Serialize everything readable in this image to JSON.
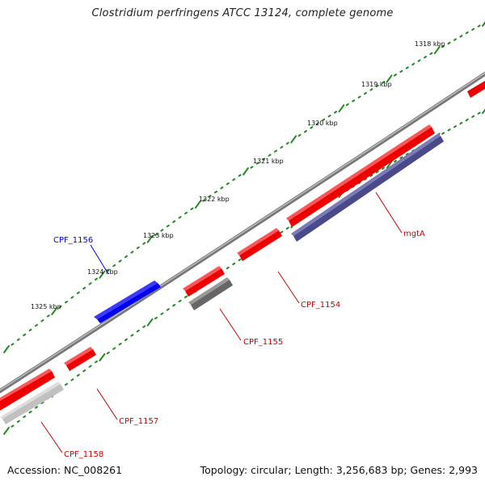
{
  "title": "Clostridium perfringens ATCC 13124, complete genome",
  "footer": {
    "accession": "Accession: NC_008261",
    "topology": "Topology: circular; Length: 3,256,683 bp; Genes: 2,993"
  },
  "ruler": {
    "labels": [
      "1318 kbp",
      "1319 kbp",
      "1320 kbp",
      "1321 kbp",
      "1322 kbp",
      "1323 kbp",
      "1324 kbp",
      "1325 kbp"
    ]
  },
  "genes": [
    {
      "name": "CPF_1156",
      "color": "#0000ee",
      "strand": "forward"
    },
    {
      "name": "mgtA",
      "color": "#cc0000",
      "strand": "reverse"
    },
    {
      "name": "CPF_1154",
      "color": "#cc0000",
      "strand": "reverse"
    },
    {
      "name": "CPF_1155",
      "color": "#cc0000",
      "strand": "reverse"
    },
    {
      "name": "CPF_1157",
      "color": "#cc0000",
      "strand": "reverse"
    },
    {
      "name": "CPF_1158",
      "color": "#cc0000",
      "strand": "reverse"
    }
  ],
  "colors": {
    "backbone": "#888888",
    "tick": "#228822",
    "cds": "#ee0000",
    "cds_forward": "#0000ee",
    "feature_purple": "#4a4a8a",
    "feature_dark_gray": "#666666",
    "feature_light_gray": "#c0c0c0"
  }
}
